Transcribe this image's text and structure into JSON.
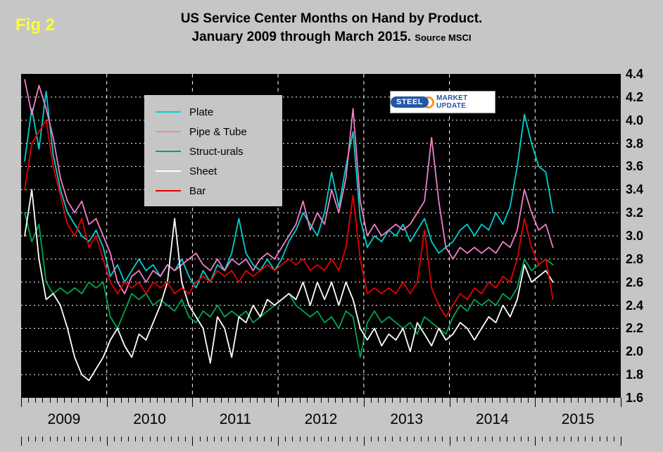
{
  "figure_label": "Fig 2",
  "header": {
    "title_line1": "US Service Center Months on Hand by Product.",
    "title_line2": "January 2009 through March 2015.",
    "source": "Source MSCI"
  },
  "logo": {
    "steel": "STEEL",
    "market_update": "MARKET UPDATE"
  },
  "chart_data": {
    "type": "line",
    "title": "US Service Center Months on Hand by Product. January 2009 through March 2015. Source MSCI",
    "background": "#000000",
    "grid": "white dotted horizontal lines every 0.2, white dashed vertical lines at year boundaries",
    "legend_position": "inside top-left",
    "ylim": [
      1.6,
      4.4
    ],
    "y_ticks": [
      4.4,
      4.2,
      4.0,
      3.8,
      3.6,
      3.4,
      3.2,
      3.0,
      2.8,
      2.6,
      2.4,
      2.2,
      2.0,
      1.8,
      1.6
    ],
    "x_axis": {
      "start": "2009-01",
      "end": "2015-03",
      "months_shown_on_axis": 84,
      "data_months": 75,
      "year_labels": [
        "2009",
        "2010",
        "2011",
        "2012",
        "2013",
        "2014",
        "2015"
      ]
    },
    "series": [
      {
        "name": "Plate",
        "color": "#00d0d0",
        "values": [
          3.65,
          4.1,
          3.75,
          4.25,
          3.7,
          3.4,
          3.2,
          3.1,
          3.0,
          2.95,
          3.05,
          2.9,
          2.65,
          2.75,
          2.6,
          2.7,
          2.8,
          2.7,
          2.75,
          2.65,
          2.75,
          2.7,
          2.8,
          2.65,
          2.55,
          2.7,
          2.6,
          2.75,
          2.7,
          2.85,
          3.15,
          2.85,
          2.75,
          2.7,
          2.8,
          2.7,
          2.8,
          2.95,
          3.05,
          3.2,
          3.1,
          3.0,
          3.2,
          3.55,
          3.25,
          3.6,
          3.9,
          3.15,
          2.9,
          3.0,
          2.95,
          3.05,
          3.0,
          3.1,
          2.95,
          3.05,
          3.15,
          2.95,
          2.85,
          2.9,
          2.95,
          3.05,
          3.1,
          3.0,
          3.1,
          3.05,
          3.2,
          3.1,
          3.25,
          3.6,
          4.05,
          3.8,
          3.6,
          3.55,
          3.2
        ]
      },
      {
        "name": "Pipe & Tube",
        "color": "#f080c8",
        "values": [
          4.35,
          4.05,
          4.3,
          4.1,
          3.85,
          3.5,
          3.3,
          3.2,
          3.3,
          3.1,
          3.15,
          3.0,
          2.85,
          2.6,
          2.5,
          2.65,
          2.7,
          2.6,
          2.7,
          2.65,
          2.75,
          2.7,
          2.75,
          2.8,
          2.85,
          2.75,
          2.7,
          2.8,
          2.7,
          2.8,
          2.75,
          2.8,
          2.7,
          2.8,
          2.85,
          2.8,
          2.9,
          3.0,
          3.1,
          3.3,
          3.05,
          3.2,
          3.1,
          3.4,
          3.2,
          3.5,
          4.1,
          3.3,
          3.0,
          3.1,
          3.0,
          3.05,
          3.1,
          3.05,
          3.1,
          3.2,
          3.3,
          3.85,
          3.3,
          2.9,
          2.8,
          2.9,
          2.85,
          2.9,
          2.85,
          2.9,
          2.85,
          2.95,
          2.9,
          3.05,
          3.4,
          3.2,
          3.05,
          3.1,
          2.9
        ]
      },
      {
        "name": "Struct-urals",
        "color": "#00a651",
        "values": [
          3.2,
          2.95,
          3.1,
          2.6,
          2.5,
          2.55,
          2.5,
          2.55,
          2.5,
          2.6,
          2.55,
          2.6,
          2.3,
          2.2,
          2.35,
          2.5,
          2.45,
          2.5,
          2.4,
          2.45,
          2.4,
          2.35,
          2.45,
          2.3,
          2.25,
          2.35,
          2.3,
          2.4,
          2.3,
          2.35,
          2.3,
          2.35,
          2.25,
          2.3,
          2.35,
          2.4,
          2.45,
          2.5,
          2.4,
          2.35,
          2.3,
          2.35,
          2.25,
          2.3,
          2.2,
          2.35,
          2.3,
          1.95,
          2.25,
          2.35,
          2.25,
          2.3,
          2.25,
          2.2,
          2.25,
          2.15,
          2.3,
          2.25,
          2.2,
          2.15,
          2.3,
          2.4,
          2.35,
          2.45,
          2.4,
          2.45,
          2.4,
          2.5,
          2.45,
          2.55,
          2.8,
          2.7,
          2.75,
          2.8,
          2.75
        ]
      },
      {
        "name": "Sheet",
        "color": "#ffffff",
        "values": [
          3.0,
          3.4,
          2.8,
          2.45,
          2.5,
          2.4,
          2.2,
          1.95,
          1.8,
          1.75,
          1.85,
          1.95,
          2.1,
          2.2,
          2.05,
          1.95,
          2.15,
          2.1,
          2.25,
          2.4,
          2.6,
          3.15,
          2.6,
          2.4,
          2.3,
          2.2,
          1.9,
          2.3,
          2.2,
          1.95,
          2.3,
          2.25,
          2.4,
          2.3,
          2.45,
          2.4,
          2.45,
          2.5,
          2.45,
          2.6,
          2.4,
          2.6,
          2.45,
          2.6,
          2.4,
          2.6,
          2.45,
          2.2,
          2.1,
          2.2,
          2.05,
          2.15,
          2.1,
          2.2,
          2.0,
          2.25,
          2.15,
          2.05,
          2.2,
          2.1,
          2.15,
          2.25,
          2.2,
          2.1,
          2.2,
          2.3,
          2.25,
          2.4,
          2.3,
          2.45,
          2.75,
          2.6,
          2.65,
          2.7,
          2.6
        ]
      },
      {
        "name": "Bar",
        "color": "#e60000",
        "values": [
          3.4,
          3.8,
          3.9,
          4.0,
          3.6,
          3.35,
          3.1,
          3.0,
          3.15,
          2.9,
          3.0,
          2.8,
          2.6,
          2.5,
          2.6,
          2.55,
          2.6,
          2.5,
          2.6,
          2.55,
          2.6,
          2.5,
          2.55,
          2.5,
          2.6,
          2.65,
          2.6,
          2.7,
          2.65,
          2.7,
          2.6,
          2.7,
          2.65,
          2.7,
          2.75,
          2.7,
          2.75,
          2.8,
          2.75,
          2.8,
          2.7,
          2.75,
          2.7,
          2.8,
          2.7,
          2.9,
          3.35,
          2.8,
          2.5,
          2.55,
          2.5,
          2.55,
          2.5,
          2.6,
          2.5,
          2.6,
          3.05,
          2.55,
          2.4,
          2.3,
          2.4,
          2.5,
          2.45,
          2.55,
          2.5,
          2.6,
          2.55,
          2.65,
          2.6,
          2.8,
          3.15,
          2.9,
          2.75,
          2.8,
          2.45
        ]
      }
    ]
  }
}
